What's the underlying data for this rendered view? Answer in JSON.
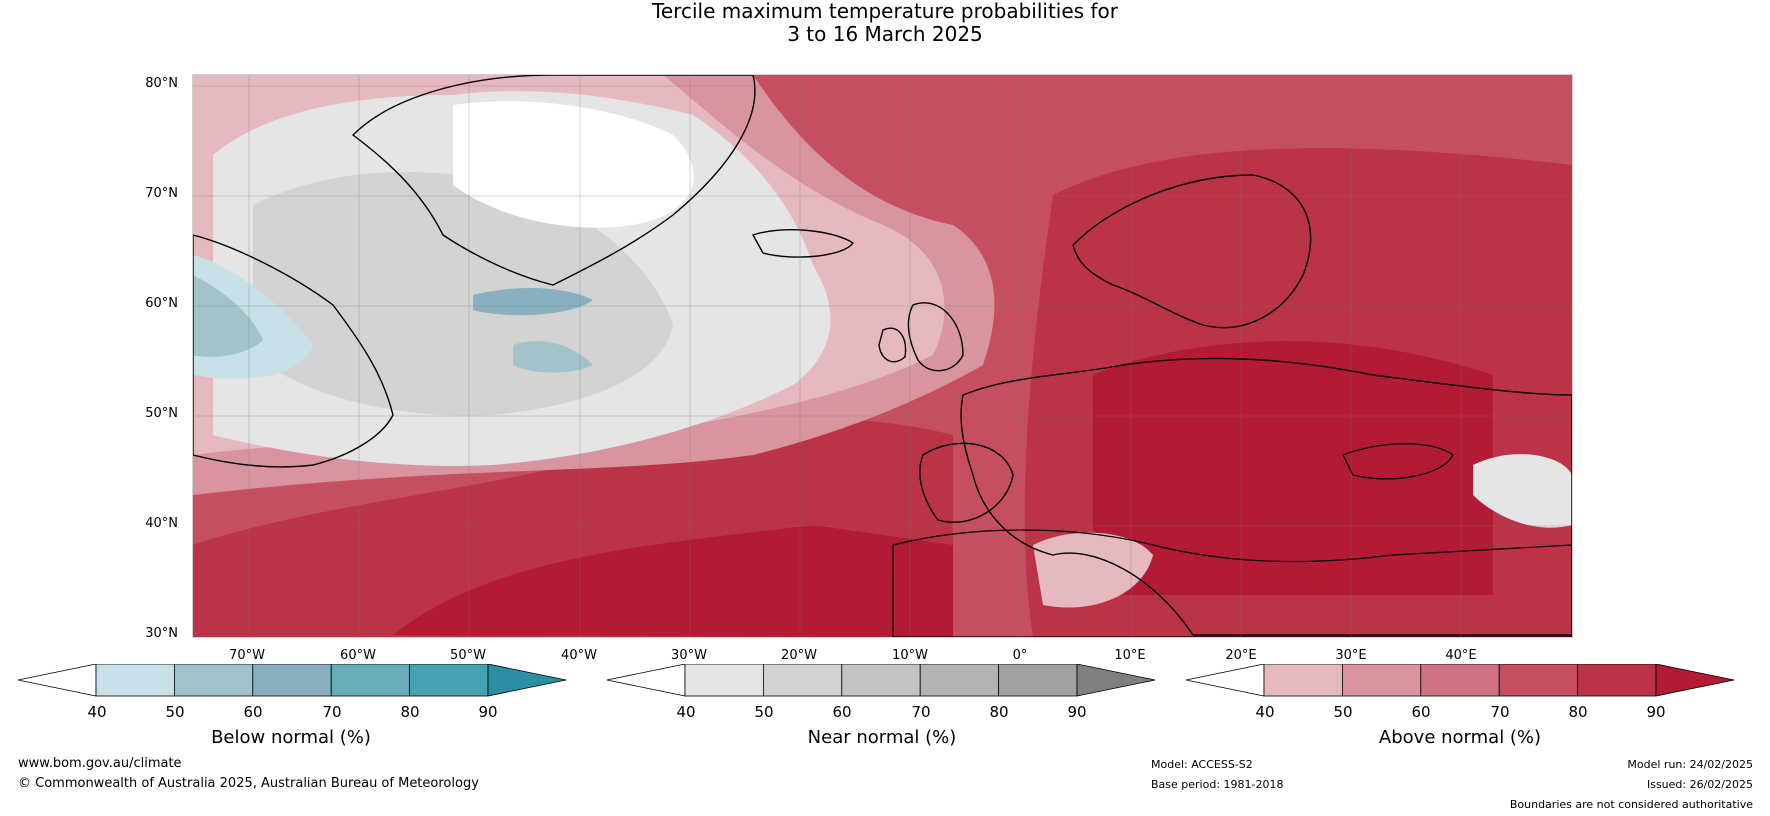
{
  "title": {
    "line1": "Tercile maximum temperature probabilities for",
    "line2": "3 to 16 March 2025"
  },
  "map": {
    "lat_labels": [
      "80°N",
      "70°N",
      "60°N",
      "50°N",
      "40°N",
      "30°N"
    ],
    "lon_labels": [
      "70°W",
      "60°W",
      "50°W",
      "40°W",
      "30°W",
      "20°W",
      "10°W",
      "0°",
      "10°E",
      "20°E",
      "30°E",
      "40°E"
    ],
    "lat_range": [
      30,
      81
    ],
    "lon_range": [
      -77.5,
      47
    ]
  },
  "colorbars": [
    {
      "title": "Below normal (%)",
      "ticks": [
        "40",
        "50",
        "60",
        "70",
        "80",
        "90"
      ],
      "colors": [
        "#ffffff",
        "#c8e0e7",
        "#a3c3cb",
        "#88b0bf",
        "#66adb9",
        "#46a2b3",
        "#2b8ea2"
      ]
    },
    {
      "title": "Near normal (%)",
      "ticks": [
        "40",
        "50",
        "60",
        "70",
        "80",
        "90"
      ],
      "colors": [
        "#ffffff",
        "#e5e5e5",
        "#d3d3d3",
        "#c3c3c3",
        "#b4b4b4",
        "#a1a1a1",
        "#808080"
      ]
    },
    {
      "title": "Above normal (%)",
      "ticks": [
        "40",
        "50",
        "60",
        "70",
        "80",
        "90"
      ],
      "colors": [
        "#ffffff",
        "#e6b9c1",
        "#d9959f",
        "#ce7480",
        "#c54f61",
        "#ba3347",
        "#b21a35"
      ]
    }
  ],
  "footer": {
    "website": "www.bom.gov.au/climate",
    "copyright": "© Commonwealth of Australia 2025, Australian Bureau of Meteorology",
    "model": "Model: ACCESS-S2",
    "base_period": "Base period: 1981-2018",
    "model_run": "Model run: 24/02/2025",
    "issued": "Issued: 26/02/2025",
    "disclaimer": "Boundaries are not considered authoritative"
  }
}
